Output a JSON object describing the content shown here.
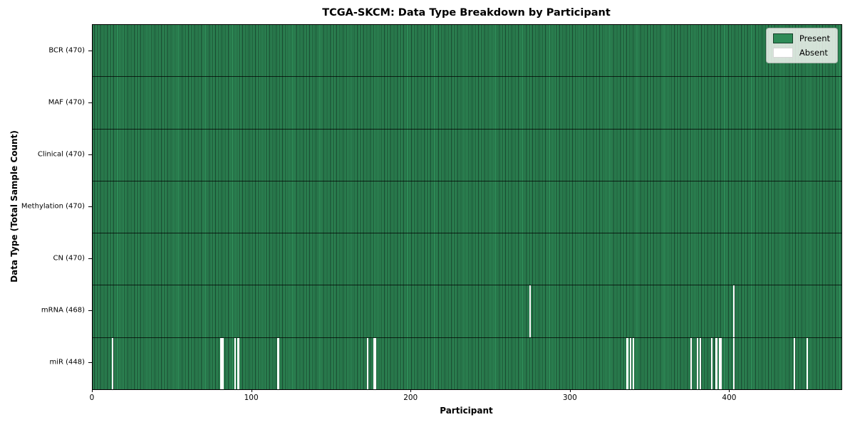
{
  "chart_data": {
    "type": "heatmap",
    "title": "TCGA-SKCM: Data Type Breakdown by Participant",
    "xlabel": "Participant",
    "ylabel": "Data Type (Total Sample Count)",
    "n_participants": 470,
    "x_ticks": [
      0,
      100,
      200,
      300,
      400
    ],
    "legend": [
      {
        "label": "Present",
        "color": "#2e8b57"
      },
      {
        "label": "Absent",
        "color": "#ffffff"
      }
    ],
    "rows": [
      {
        "name": "BCR",
        "label": "BCR (470)",
        "total": 470,
        "absent": []
      },
      {
        "name": "MAF",
        "label": "MAF (470)",
        "total": 470,
        "absent": []
      },
      {
        "name": "Clinical",
        "label": "Clinical (470)",
        "total": 470,
        "absent": []
      },
      {
        "name": "Methylation",
        "label": "Methylation (470)",
        "total": 470,
        "absent": []
      },
      {
        "name": "CN",
        "label": "CN (470)",
        "total": 470,
        "absent": []
      },
      {
        "name": "mRNA",
        "label": "mRNA (468)",
        "total": 468,
        "absent": [
          274,
          402
        ]
      },
      {
        "name": "miR",
        "label": "miR (448)",
        "total": 448,
        "absent": [
          12,
          80,
          81,
          89,
          91,
          116,
          172,
          176,
          177,
          335,
          337,
          339,
          375,
          379,
          381,
          388,
          391,
          393,
          394,
          402,
          440,
          448
        ]
      }
    ],
    "colors": {
      "present": "#2e8b57",
      "present_edge": "#16402a",
      "absent": "#ffffff",
      "row_divider": "#1a1a1a"
    }
  }
}
